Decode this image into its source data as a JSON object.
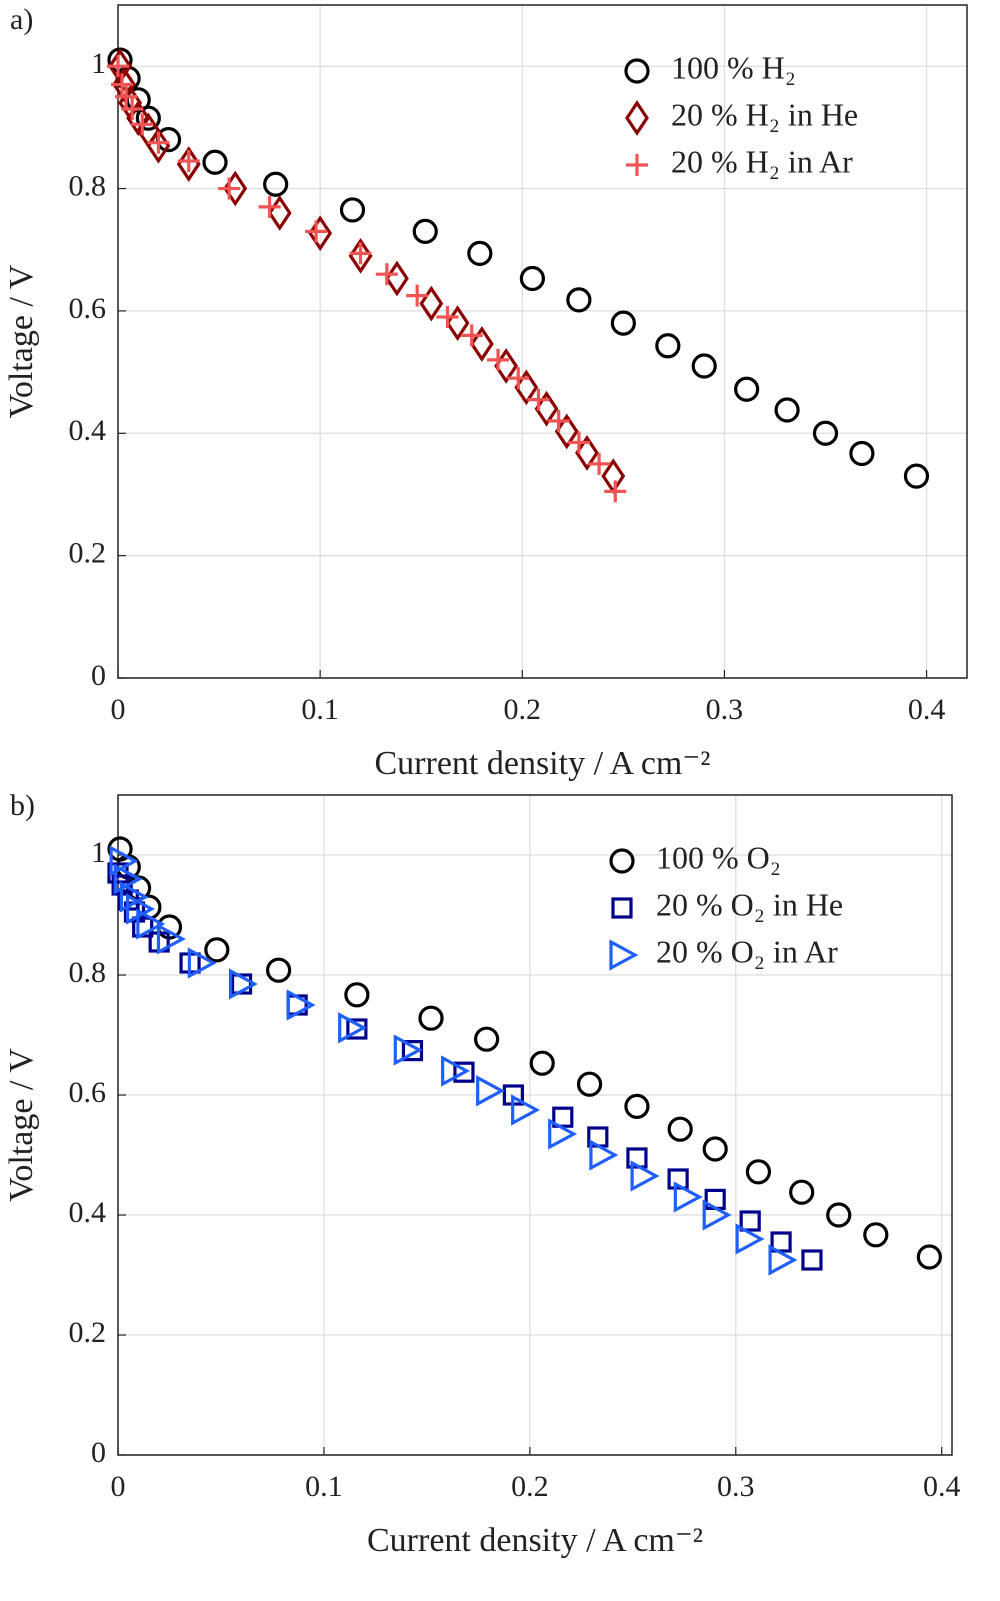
{
  "chart_data": [
    {
      "type": "scatter",
      "panel_label": "a)",
      "xlabel": "Current density / A cm⁻²",
      "ylabel": "Voltage / V",
      "xlim": [
        0,
        0.42
      ],
      "ylim": [
        0,
        1.1
      ],
      "xticks": [
        0,
        0.1,
        0.2,
        0.3,
        0.4
      ],
      "yticks": [
        0,
        0.2,
        0.4,
        0.6,
        0.8,
        1
      ],
      "grid": true,
      "legend": "upper right",
      "series": [
        {
          "name": "100 % H₂",
          "color": "#000000",
          "marker": "circle",
          "x": [
            0.001,
            0.005,
            0.01,
            0.015,
            0.025,
            0.048,
            0.078,
            0.116,
            0.152,
            0.179,
            0.205,
            0.228,
            0.25,
            0.272,
            0.29,
            0.311,
            0.331,
            0.35,
            0.368,
            0.395
          ],
          "values": [
            1.01,
            0.98,
            0.945,
            0.915,
            0.88,
            0.843,
            0.807,
            0.765,
            0.73,
            0.694,
            0.653,
            0.618,
            0.58,
            0.543,
            0.51,
            0.472,
            0.438,
            0.4,
            0.367,
            0.33
          ]
        },
        {
          "name": "20 % H₂ in He",
          "color": "#8b0000",
          "marker": "diamond",
          "x": [
            0.001,
            0.003,
            0.006,
            0.01,
            0.015,
            0.02,
            0.035,
            0.058,
            0.08,
            0.1,
            0.12,
            0.138,
            0.155,
            0.168,
            0.18,
            0.192,
            0.202,
            0.212,
            0.222,
            0.232,
            0.245
          ],
          "values": [
            1.0,
            0.97,
            0.94,
            0.915,
            0.895,
            0.87,
            0.84,
            0.8,
            0.76,
            0.727,
            0.69,
            0.653,
            0.612,
            0.58,
            0.546,
            0.51,
            0.475,
            0.44,
            0.403,
            0.368,
            0.33
          ]
        },
        {
          "name": "20 % H₂ in Ar",
          "color": "#f05454",
          "marker": "plus",
          "x": [
            0.0,
            0.002,
            0.004,
            0.007,
            0.012,
            0.02,
            0.035,
            0.055,
            0.075,
            0.098,
            0.12,
            0.133,
            0.148,
            0.163,
            0.175,
            0.188,
            0.198,
            0.208,
            0.218,
            0.228,
            0.238,
            0.246
          ],
          "values": [
            1.0,
            0.97,
            0.95,
            0.93,
            0.905,
            0.875,
            0.845,
            0.8,
            0.77,
            0.73,
            0.694,
            0.66,
            0.625,
            0.59,
            0.56,
            0.52,
            0.49,
            0.455,
            0.42,
            0.385,
            0.35,
            0.305
          ]
        }
      ]
    },
    {
      "type": "scatter",
      "panel_label": "b)",
      "xlabel": "Current density / A cm⁻²",
      "ylabel": "Voltage / V",
      "xlim": [
        0,
        0.405
      ],
      "ylim": [
        0,
        1.1
      ],
      "xticks": [
        0,
        0.1,
        0.2,
        0.3,
        0.4
      ],
      "yticks": [
        0,
        0.2,
        0.4,
        0.6,
        0.8,
        1
      ],
      "grid": true,
      "legend": "upper right",
      "series": [
        {
          "name": "100 % O₂",
          "color": "#000000",
          "marker": "circle",
          "x": [
            0.001,
            0.005,
            0.01,
            0.015,
            0.025,
            0.048,
            0.078,
            0.116,
            0.152,
            0.179,
            0.206,
            0.229,
            0.252,
            0.273,
            0.29,
            0.311,
            0.332,
            0.35,
            0.368,
            0.394
          ],
          "values": [
            1.01,
            0.98,
            0.945,
            0.913,
            0.88,
            0.842,
            0.808,
            0.767,
            0.728,
            0.693,
            0.653,
            0.618,
            0.581,
            0.543,
            0.51,
            0.472,
            0.438,
            0.4,
            0.367,
            0.33
          ]
        },
        {
          "name": "20 % O₂ in He",
          "color": "#00008b",
          "marker": "square",
          "x": [
            0.0,
            0.002,
            0.005,
            0.008,
            0.012,
            0.02,
            0.035,
            0.06,
            0.087,
            0.116,
            0.143,
            0.168,
            0.192,
            0.216,
            0.233,
            0.252,
            0.272,
            0.29,
            0.307,
            0.322,
            0.337
          ],
          "values": [
            0.97,
            0.95,
            0.925,
            0.905,
            0.88,
            0.855,
            0.82,
            0.785,
            0.75,
            0.71,
            0.674,
            0.638,
            0.6,
            0.563,
            0.53,
            0.495,
            0.46,
            0.426,
            0.39,
            0.355,
            0.325
          ]
        },
        {
          "name": "20 % O₂ in Ar",
          "color": "#1f5fff",
          "marker": "triangle-right",
          "x": [
            0.002,
            0.004,
            0.007,
            0.01,
            0.015,
            0.025,
            0.04,
            0.06,
            0.088,
            0.113,
            0.14,
            0.163,
            0.18,
            0.197,
            0.215,
            0.235,
            0.255,
            0.276,
            0.29,
            0.306,
            0.322
          ],
          "values": [
            0.99,
            0.96,
            0.93,
            0.91,
            0.885,
            0.86,
            0.82,
            0.785,
            0.75,
            0.712,
            0.675,
            0.64,
            0.607,
            0.575,
            0.535,
            0.5,
            0.465,
            0.43,
            0.4,
            0.36,
            0.325
          ]
        }
      ]
    }
  ]
}
